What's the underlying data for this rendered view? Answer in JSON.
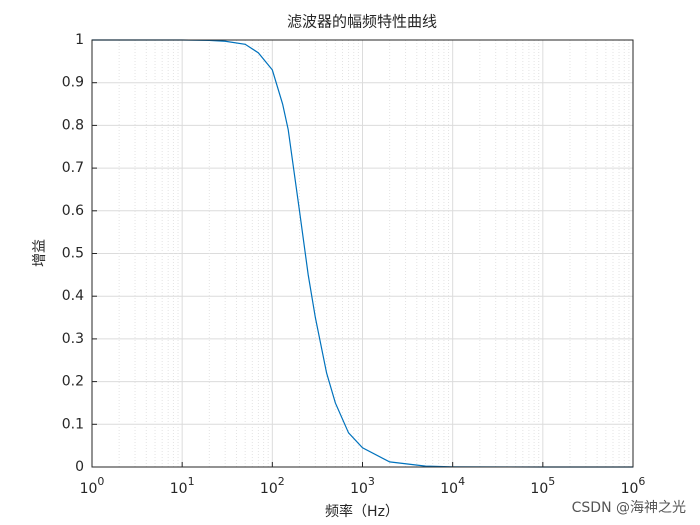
{
  "chart_data": {
    "type": "line",
    "title": "滤波器的幅频特性曲线",
    "xlabel": "频率（Hz）",
    "ylabel": "增益",
    "x": [
      1,
      10,
      20,
      30,
      50,
      70,
      100,
      130,
      150,
      200,
      250,
      300,
      400,
      500,
      700,
      1000,
      2000,
      5000,
      10000,
      100000,
      1000000
    ],
    "series": [
      {
        "name": "增益",
        "color": "#0072bd",
        "values": [
          1,
          1,
          0.999,
          0.997,
          0.99,
          0.97,
          0.93,
          0.85,
          0.79,
          0.6,
          0.45,
          0.35,
          0.22,
          0.15,
          0.08,
          0.045,
          0.012,
          0.002,
          0.0005,
          0,
          0
        ]
      }
    ],
    "xscale": "log",
    "xlim": [
      1,
      1000000
    ],
    "xticks": [
      {
        "value": 1,
        "label": "10",
        "exp": "0"
      },
      {
        "value": 10,
        "label": "10",
        "exp": "1"
      },
      {
        "value": 100,
        "label": "10",
        "exp": "2"
      },
      {
        "value": 1000,
        "label": "10",
        "exp": "3"
      },
      {
        "value": 10000,
        "label": "10",
        "exp": "4"
      },
      {
        "value": 100000,
        "label": "10",
        "exp": "5"
      },
      {
        "value": 1000000,
        "label": "10",
        "exp": "6"
      }
    ],
    "ylim": [
      0,
      1
    ],
    "yticks": [
      0,
      0.1,
      0.2,
      0.3,
      0.4,
      0.5,
      0.6,
      0.7,
      0.8,
      0.9,
      1
    ],
    "grid": true,
    "minor_grid": true
  },
  "watermark": "CSDN @海神之光"
}
